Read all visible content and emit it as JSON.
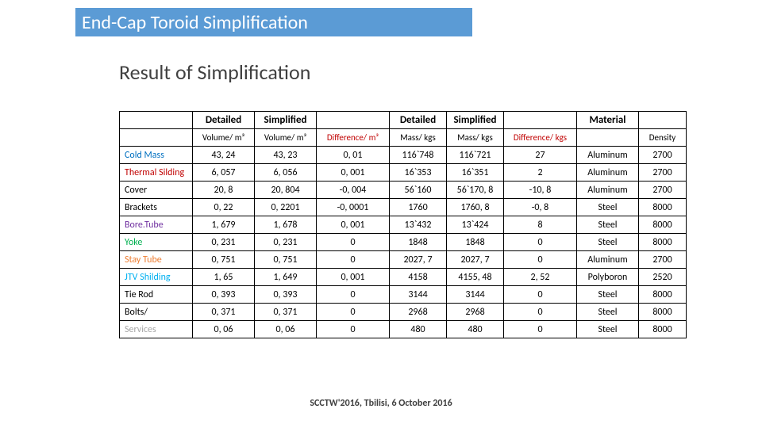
{
  "title": "End-Cap Toroid Simplification",
  "subtitle": "Result of Simplification",
  "footer": "SCCTW'2016, Tbilisi, 6 October 2016",
  "header1": {
    "detailed": "Detailed",
    "simplified": "Simplified",
    "material": "Material"
  },
  "header2": {
    "vol_d": "Volume/ m³",
    "vol_s": "Volume/ m³",
    "dvol": "Difference/ m³",
    "mass_d": "Mass/ kgs",
    "mass_s": "Mass/ kgs",
    "dmass": "Difference/ kgs",
    "density": "Density"
  },
  "rows": [
    {
      "label": "Cold Mass",
      "vd": "43, 24",
      "vs": "43, 23",
      "dv": "0, 01",
      "md": "116`748",
      "ms": "116`721",
      "dm": "27",
      "mat": "Aluminum",
      "den": "2700",
      "color": "#0070c0"
    },
    {
      "label": "Thermal Silding",
      "vd": "6, 057",
      "vs": "6, 056",
      "dv": "0, 001",
      "md": "16`353",
      "ms": "16`351",
      "dm": "2",
      "mat": "Aluminum",
      "den": "2700",
      "color": "#c00000"
    },
    {
      "label": "Cover",
      "vd": "20, 8",
      "vs": "20, 804",
      "dv": "-0, 004",
      "md": "56`160",
      "ms": "56`170, 8",
      "dm": "-10, 8",
      "mat": "Aluminum",
      "den": "2700",
      "color": "#000000"
    },
    {
      "label": "Brackets",
      "vd": "0, 22",
      "vs": "0, 2201",
      "dv": "-0, 0001",
      "md": "1760",
      "ms": "1760, 8",
      "dm": "-0, 8",
      "mat": "Steel",
      "den": "8000",
      "color": "#000000"
    },
    {
      "label": "Bore.Tube",
      "vd": "1, 679",
      "vs": "1, 678",
      "dv": "0, 001",
      "md": "13`432",
      "ms": "13`424",
      "dm": "8",
      "mat": "Steel",
      "den": "8000",
      "color": "#7030a0"
    },
    {
      "label": "Yoke",
      "vd": "0, 231",
      "vs": "0, 231",
      "dv": "0",
      "md": "1848",
      "ms": "1848",
      "dm": "0",
      "mat": "Steel",
      "den": "8000",
      "color": "#00b050"
    },
    {
      "label": "Stay Tube",
      "vd": "0, 751",
      "vs": "0, 751",
      "dv": "0",
      "md": "2027, 7",
      "ms": "2027, 7",
      "dm": "0",
      "mat": "Aluminum",
      "den": "2700",
      "color": "#ed7d31"
    },
    {
      "label": "JTV Shilding",
      "vd": "1, 65",
      "vs": "1, 649",
      "dv": "0, 001",
      "md": "4158",
      "ms": "4155, 48",
      "dm": "2, 52",
      "mat": "Polyboron",
      "den": "2520",
      "color": "#00b0f0"
    },
    {
      "label": "Tie Rod",
      "vd": "0, 393",
      "vs": "0, 393",
      "dv": "0",
      "md": "3144",
      "ms": "3144",
      "dm": "0",
      "mat": "Steel",
      "den": "8000",
      "color": "#000000"
    },
    {
      "label": "Bolts/",
      "vd": "0, 371",
      "vs": "0, 371",
      "dv": "0",
      "md": "2968",
      "ms": "2968",
      "dm": "0",
      "mat": "Steel",
      "den": "8000",
      "color": "#000000"
    },
    {
      "label": "Services",
      "vd": "0, 06",
      "vs": "0, 06",
      "dv": "0",
      "md": "480",
      "ms": "480",
      "dm": "0",
      "mat": "Steel",
      "den": "8000",
      "color": "#a6a6a6"
    }
  ],
  "styling": {
    "title_bg": "#5b9bd5",
    "title_fg": "#ffffff",
    "border_color": "#000000",
    "difference_header_color": "#c00000"
  }
}
